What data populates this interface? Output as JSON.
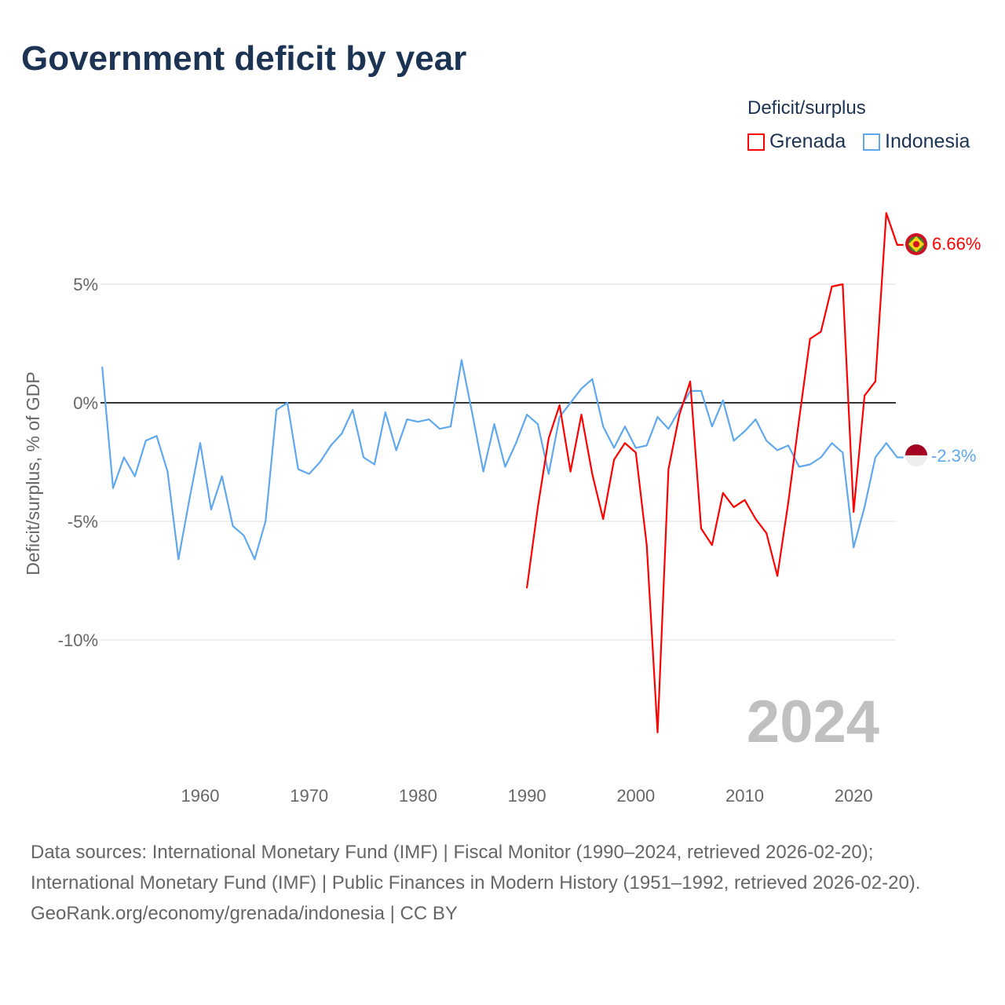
{
  "title": "Government deficit by year",
  "legend": {
    "title": "Deficit/surplus",
    "items": [
      {
        "label": "Grenada",
        "color": "#ff0000"
      },
      {
        "label": "Indonesia",
        "color": "#5fa8ee"
      }
    ]
  },
  "chart_data": {
    "type": "line",
    "ylabel": "Deficit/surplus, % of GDP",
    "xlabel": "",
    "ylim": [
      -14,
      8.5
    ],
    "xlim": [
      1951,
      2024
    ],
    "y_ticks": [
      {
        "value": 5,
        "label": "5%"
      },
      {
        "value": 0,
        "label": "0%"
      },
      {
        "value": -5,
        "label": "-5%"
      },
      {
        "value": -10,
        "label": "-10%"
      }
    ],
    "x_ticks": [
      {
        "value": 1960,
        "label": "1960"
      },
      {
        "value": 1970,
        "label": "1970"
      },
      {
        "value": 1980,
        "label": "1980"
      },
      {
        "value": 1990,
        "label": "1990"
      },
      {
        "value": 2000,
        "label": "2000"
      },
      {
        "value": 2010,
        "label": "2010"
      },
      {
        "value": 2020,
        "label": "2020"
      }
    ],
    "year_watermark": "2024",
    "series": [
      {
        "name": "Grenada",
        "color": "#ff0000",
        "end_label": "6.66%",
        "x_start": 1990,
        "values": [
          -7.8,
          -4.4,
          -1.5,
          -0.1,
          -2.9,
          -0.5,
          -3.0,
          -4.9,
          -2.4,
          -1.7,
          -2.1,
          -6.0,
          -13.9,
          -2.8,
          -0.5,
          0.9,
          -5.3,
          -6.0,
          -3.8,
          -4.4,
          -4.1,
          -4.9,
          -5.5,
          -7.3,
          -4.2,
          -0.7,
          2.7,
          3.0,
          4.9,
          5.0,
          -4.6,
          0.3,
          0.9,
          8.0,
          6.66
        ]
      },
      {
        "name": "Indonesia",
        "color": "#5fa8ee",
        "end_label": "-2.3%",
        "x_start": 1951,
        "values": [
          1.5,
          -3.6,
          -2.3,
          -3.1,
          -1.6,
          -1.4,
          -2.9,
          -6.6,
          -4.1,
          -1.7,
          -4.5,
          -3.1,
          -5.2,
          -5.6,
          -6.6,
          -5.0,
          -0.3,
          0.0,
          -2.8,
          -3.0,
          -2.5,
          -1.8,
          -1.3,
          -0.3,
          -2.3,
          -2.6,
          -0.4,
          -2.0,
          -0.7,
          -0.8,
          -0.7,
          -1.1,
          -1.0,
          1.8,
          -0.5,
          -2.9,
          -0.9,
          -2.7,
          -1.7,
          -0.5,
          -0.9,
          -3.0,
          -0.6,
          0.0,
          0.6,
          1.0,
          -1.0,
          -1.9,
          -1.0,
          -1.9,
          -1.8,
          -0.6,
          -1.1,
          -0.3,
          0.5,
          0.5,
          -1.0,
          0.1,
          -1.6,
          -1.2,
          -0.7,
          -1.6,
          -2.0,
          -1.8,
          -2.7,
          -2.6,
          -2.3,
          -1.7,
          -2.1,
          -6.1,
          -4.4,
          -2.3,
          -1.7,
          -2.3
        ]
      }
    ]
  },
  "footer": {
    "sources": "Data sources: International Monetary Fund (IMF) | Fiscal Monitor (1990–2024, retrieved 2026-02-20); International Monetary Fund (IMF) | Public Finances in Modern History (1951–1992, retrieved 2026-02-20).",
    "link": "GeoRank.org/economy/grenada/indonesia | CC BY"
  }
}
